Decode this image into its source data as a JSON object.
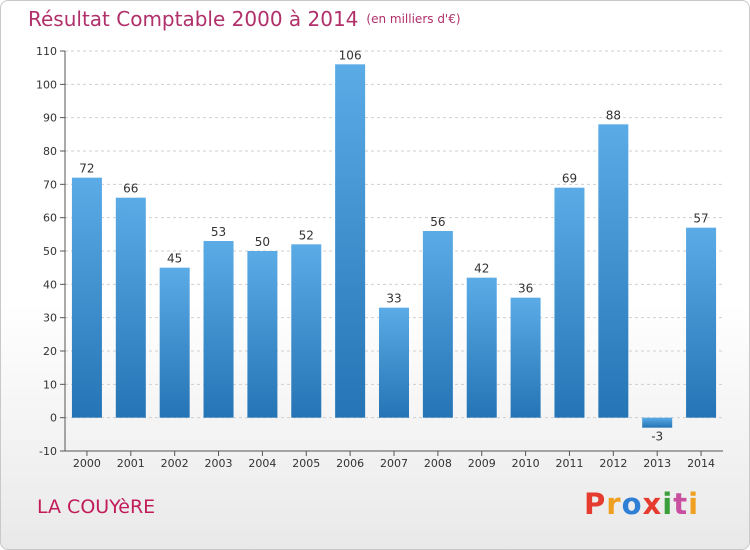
{
  "header": {
    "title": "Résultat Comptable 2000 à 2014",
    "unit": "(en milliers d'€)"
  },
  "footer": {
    "commune": "LA COUYèRE",
    "brand": "Proxiti",
    "brand_colors": [
      "#e63c2f",
      "#f0a020",
      "#2f7fd4",
      "#e63c2f",
      "#3a9e3a",
      "#c94fa0",
      "#f0a020"
    ]
  },
  "colors": {
    "bar_top": "#5aabe6",
    "bar_bottom": "#2574b5",
    "grid": "#cfcfcf",
    "axis": "#555555",
    "title": "#b0306a"
  },
  "chart_data": {
    "type": "bar",
    "title": "Résultat Comptable 2000 à 2014",
    "subtitle": "(en milliers d'€)",
    "categories": [
      "2000",
      "2001",
      "2002",
      "2003",
      "2004",
      "2005",
      "2006",
      "2007",
      "2008",
      "2009",
      "2010",
      "2011",
      "2012",
      "2013",
      "2014"
    ],
    "values": [
      72,
      66,
      45,
      53,
      50,
      52,
      106,
      33,
      56,
      42,
      36,
      69,
      88,
      -3,
      57
    ],
    "ylim": [
      -10,
      110
    ],
    "yticks": [
      -10,
      0,
      10,
      20,
      30,
      40,
      50,
      60,
      70,
      80,
      90,
      100,
      110
    ],
    "grid": true,
    "xlabel": "",
    "ylabel": ""
  }
}
